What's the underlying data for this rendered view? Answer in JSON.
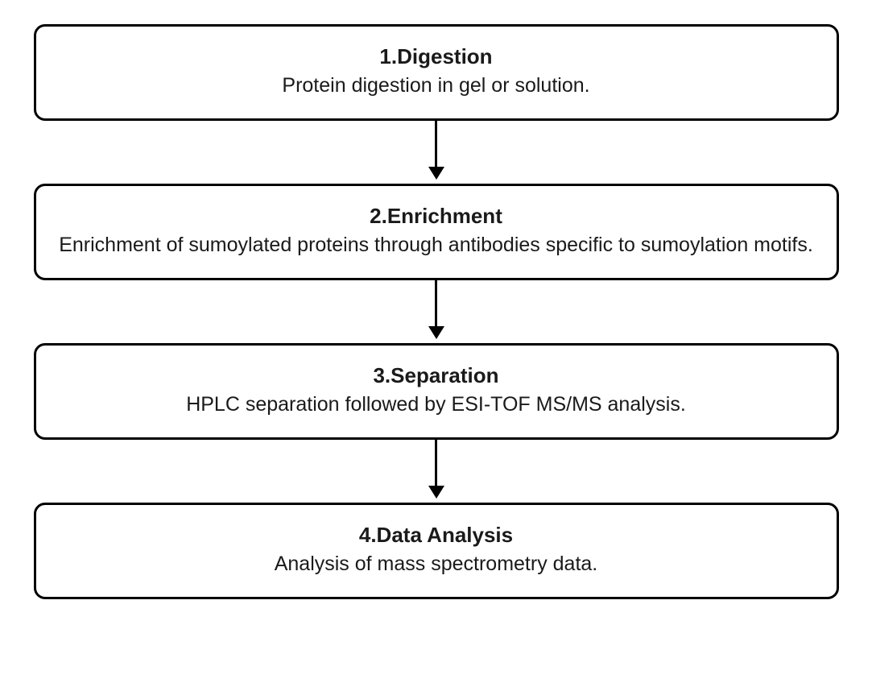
{
  "flowchart": {
    "type": "flowchart",
    "direction": "vertical",
    "background_color": "#ffffff",
    "node_border_color": "#000000",
    "node_border_width": 3,
    "node_border_radius": 14,
    "node_fill_color": "#ffffff",
    "arrow_color": "#000000",
    "arrow_line_width": 3,
    "arrow_head_size": 16,
    "title_fontsize": 26,
    "title_fontweight": 700,
    "desc_fontsize": 25,
    "desc_fontweight": 400,
    "text_color": "#1a1a1a",
    "nodes": [
      {
        "id": "digestion",
        "title": "1.Digestion",
        "desc": "Protein digestion in gel or solution."
      },
      {
        "id": "enrichment",
        "title": "2.Enrichment",
        "desc": "Enrichment of sumoylated proteins through antibodies specific to sumoylation motifs."
      },
      {
        "id": "separation",
        "title": "3.Separation",
        "desc": "HPLC separation followed by ESI-TOF MS/MS analysis."
      },
      {
        "id": "data-analysis",
        "title": "4.Data Analysis",
        "desc": "Analysis of mass spectrometry data."
      }
    ],
    "edges": [
      {
        "from": "digestion",
        "to": "enrichment"
      },
      {
        "from": "enrichment",
        "to": "separation"
      },
      {
        "from": "separation",
        "to": "data-analysis"
      }
    ]
  }
}
